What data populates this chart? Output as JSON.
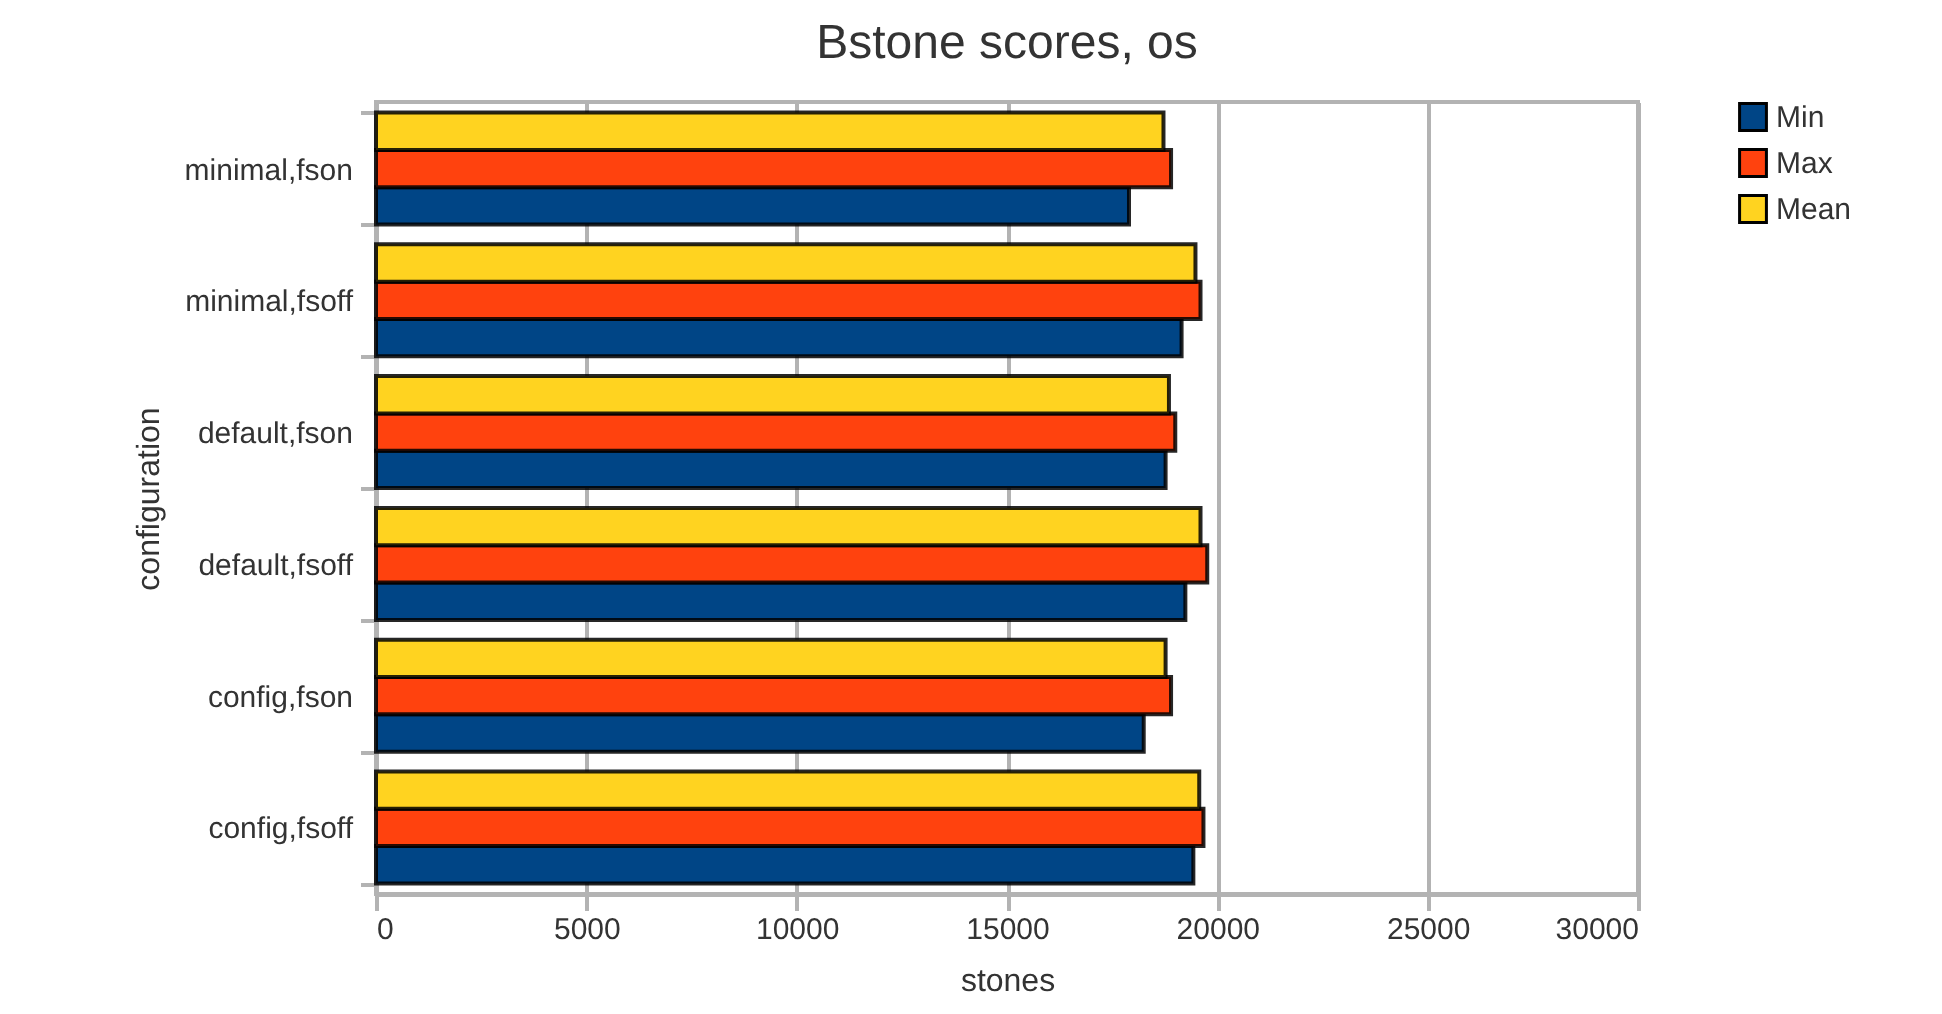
{
  "chart_data": {
    "type": "bar",
    "orientation": "horizontal",
    "title": "Bstone scores, os",
    "xlabel": "stones",
    "ylabel": "configuration",
    "categories": [
      "minimal,fson",
      "minimal,fsoff",
      "default,fson",
      "default,fsoff",
      "config,fson",
      "config,fsoff"
    ],
    "series": [
      {
        "name": "Min",
        "color": "#004586",
        "values": [
          17900,
          19150,
          18770,
          19240,
          18250,
          19430
        ]
      },
      {
        "name": "Max",
        "color": "#ff420e",
        "values": [
          18900,
          19600,
          19000,
          19760,
          18900,
          19670
        ]
      },
      {
        "name": "Mean",
        "color": "#ffd320",
        "values": [
          18720,
          19480,
          18850,
          19600,
          18770,
          19570
        ]
      }
    ],
    "xlim": [
      0,
      30000
    ],
    "xticks": [
      0,
      5000,
      10000,
      15000,
      20000,
      25000,
      30000
    ],
    "grid": "x",
    "legend": "right"
  }
}
